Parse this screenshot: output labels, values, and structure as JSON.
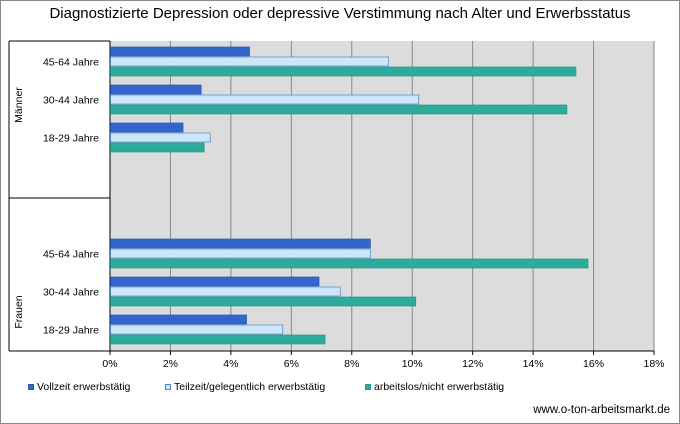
{
  "chart_data": {
    "type": "bar",
    "orientation": "horizontal",
    "title": "Diagnostizierte Depression oder depressive Verstimmung nach Alter und Erwerbsstatus",
    "groups": [
      {
        "name": "Männer",
        "categories": [
          "45-64 Jahre",
          "30-44 Jahre",
          "18-29 Jahre"
        ],
        "series": [
          {
            "name": "Vollzeit erwerbstätig",
            "values": [
              4.6,
              3.0,
              2.4
            ]
          },
          {
            "name": "Teilzeit/gelegentlich erwerbstätig",
            "values": [
              9.2,
              10.2,
              3.3
            ]
          },
          {
            "name": "arbeitslos/nicht erwerbstätig",
            "values": [
              15.4,
              15.1,
              3.1
            ]
          }
        ]
      },
      {
        "name": "Frauen",
        "categories": [
          "45-64 Jahre",
          "30-44 Jahre",
          "18-29 Jahre"
        ],
        "series": [
          {
            "name": "Vollzeit erwerbstätig",
            "values": [
              8.6,
              6.9,
              4.5
            ]
          },
          {
            "name": "Teilzeit/gelegentlich erwerbstätig",
            "values": [
              8.6,
              7.6,
              5.7
            ]
          },
          {
            "name": "arbeitslos/nicht erwerbstätig",
            "values": [
              15.8,
              10.1,
              7.1
            ]
          }
        ]
      }
    ],
    "x_ticks": [
      "0%",
      "2%",
      "4%",
      "6%",
      "8%",
      "10%",
      "12%",
      "14%",
      "16%",
      "18%"
    ],
    "xlim": [
      0,
      18
    ],
    "grid": true,
    "legend_position": "bottom",
    "colors": {
      "Vollzeit erwerbstätig": "#3366cc",
      "Teilzeit/gelegentlich erwerbstätig": "#cce6fa",
      "arbeitslos/nicht erwerbstätig": "#2eab9c",
      "plot_background": "#dcdcdc"
    }
  },
  "source": "www.o-ton-arbeitsmarkt.de"
}
